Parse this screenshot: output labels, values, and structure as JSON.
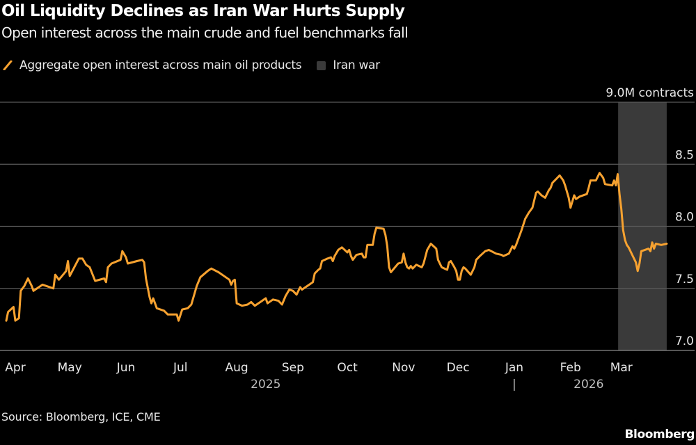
{
  "header": {
    "title": "Oil Liquidity Declines as Iran War Hurts Supply",
    "subtitle": "Open interest across the main crude and fuel benchmarks fall"
  },
  "legend": {
    "series_label": "Aggregate open interest across main oil products",
    "shade_label": "Iran war"
  },
  "footer": {
    "source": "Source: Bloomberg, ICE, CME",
    "logo": "Bloomberg"
  },
  "colors": {
    "line": "#f7a230",
    "shade": "#3a3a3a",
    "grid": "#5a5a5a",
    "background": "#000000"
  },
  "chart_data": {
    "type": "line",
    "ylabel_unit": "9.0M contracts",
    "ylim": [
      7.0,
      9.0
    ],
    "yticks": [
      {
        "value": 7.0,
        "label": "7.0"
      },
      {
        "value": 7.5,
        "label": "7.5"
      },
      {
        "value": 8.0,
        "label": "8.0"
      },
      {
        "value": 8.5,
        "label": "8.5"
      },
      {
        "value": 9.0,
        "label": "9.0M contracts"
      }
    ],
    "grid": true,
    "xlim": [
      "2025-03-26",
      "2026-03-26"
    ],
    "xticks": [
      {
        "date": "2025-04-01",
        "label": "Apr"
      },
      {
        "date": "2025-05-01",
        "label": "May"
      },
      {
        "date": "2025-06-01",
        "label": "Jun"
      },
      {
        "date": "2025-07-01",
        "label": "Jul"
      },
      {
        "date": "2025-08-01",
        "label": "Aug"
      },
      {
        "date": "2025-09-01",
        "label": "Sep"
      },
      {
        "date": "2025-10-01",
        "label": "Oct"
      },
      {
        "date": "2025-11-01",
        "label": "Nov"
      },
      {
        "date": "2025-12-01",
        "label": "Dec"
      },
      {
        "date": "2026-01-01",
        "label": "Jan"
      },
      {
        "date": "2026-02-01",
        "label": "Feb"
      },
      {
        "date": "2026-03-01",
        "label": "Mar"
      }
    ],
    "year_labels": [
      {
        "date": "2025-08-17",
        "label": "2025"
      },
      {
        "date": "2026-02-11",
        "label": "2026"
      }
    ],
    "year_divider": "|",
    "shaded_periods": [
      {
        "name": "Iran war",
        "start": "2026-02-28",
        "end": "2026-03-26"
      }
    ],
    "series": [
      {
        "name": "Aggregate open interest across main oil products",
        "points": [
          [
            "2025-03-27",
            7.24
          ],
          [
            "2025-03-28",
            7.31
          ],
          [
            "2025-03-31",
            7.35
          ],
          [
            "2025-04-01",
            7.24
          ],
          [
            "2025-04-03",
            7.26
          ],
          [
            "2025-04-04",
            7.48
          ],
          [
            "2025-04-06",
            7.52
          ],
          [
            "2025-04-08",
            7.58
          ],
          [
            "2025-04-10",
            7.52
          ],
          [
            "2025-04-11",
            7.48
          ],
          [
            "2025-04-16",
            7.53
          ],
          [
            "2025-04-22",
            7.5
          ],
          [
            "2025-04-23",
            7.61
          ],
          [
            "2025-04-25",
            7.57
          ],
          [
            "2025-04-29",
            7.64
          ],
          [
            "2025-04-30",
            7.72
          ],
          [
            "2025-05-01",
            7.6
          ],
          [
            "2025-05-06",
            7.74
          ],
          [
            "2025-05-08",
            7.74
          ],
          [
            "2025-05-10",
            7.69
          ],
          [
            "2025-05-12",
            7.67
          ],
          [
            "2025-05-15",
            7.56
          ],
          [
            "2025-05-20",
            7.58
          ],
          [
            "2025-05-21",
            7.55
          ],
          [
            "2025-05-22",
            7.67
          ],
          [
            "2025-05-24",
            7.7
          ],
          [
            "2025-05-29",
            7.73
          ],
          [
            "2025-05-30",
            7.8
          ],
          [
            "2025-06-01",
            7.75
          ],
          [
            "2025-06-02",
            7.7
          ],
          [
            "2025-06-07",
            7.72
          ],
          [
            "2025-06-10",
            7.73
          ],
          [
            "2025-06-11",
            7.71
          ],
          [
            "2025-06-12",
            7.58
          ],
          [
            "2025-06-14",
            7.43
          ],
          [
            "2025-06-15",
            7.38
          ],
          [
            "2025-06-16",
            7.42
          ],
          [
            "2025-06-18",
            7.34
          ],
          [
            "2025-06-22",
            7.32
          ],
          [
            "2025-06-24",
            7.29
          ],
          [
            "2025-06-29",
            7.29
          ],
          [
            "2025-06-30",
            7.24
          ],
          [
            "2025-07-02",
            7.33
          ],
          [
            "2025-07-05",
            7.34
          ],
          [
            "2025-07-07",
            7.37
          ],
          [
            "2025-07-10",
            7.52
          ],
          [
            "2025-07-12",
            7.59
          ],
          [
            "2025-07-16",
            7.64
          ],
          [
            "2025-07-18",
            7.66
          ],
          [
            "2025-07-22",
            7.63
          ],
          [
            "2025-07-28",
            7.57
          ],
          [
            "2025-07-29",
            7.53
          ],
          [
            "2025-07-30",
            7.56
          ],
          [
            "2025-07-31",
            7.57
          ],
          [
            "2025-08-01",
            7.38
          ],
          [
            "2025-08-04",
            7.36
          ],
          [
            "2025-08-07",
            7.37
          ],
          [
            "2025-08-09",
            7.39
          ],
          [
            "2025-08-11",
            7.36
          ],
          [
            "2025-08-15",
            7.4
          ],
          [
            "2025-08-17",
            7.42
          ],
          [
            "2025-08-18",
            7.38
          ],
          [
            "2025-08-21",
            7.41
          ],
          [
            "2025-08-24",
            7.4
          ],
          [
            "2025-08-26",
            7.37
          ],
          [
            "2025-08-28",
            7.44
          ],
          [
            "2025-08-30",
            7.49
          ],
          [
            "2025-09-01",
            7.48
          ],
          [
            "2025-09-03",
            7.45
          ],
          [
            "2025-09-05",
            7.51
          ],
          [
            "2025-09-06",
            7.49
          ],
          [
            "2025-09-10",
            7.53
          ],
          [
            "2025-09-12",
            7.55
          ],
          [
            "2025-09-13",
            7.62
          ],
          [
            "2025-09-15",
            7.65
          ],
          [
            "2025-09-16",
            7.66
          ],
          [
            "2025-09-17",
            7.72
          ],
          [
            "2025-09-20",
            7.74
          ],
          [
            "2025-09-22",
            7.75
          ],
          [
            "2025-09-23",
            7.72
          ],
          [
            "2025-09-24",
            7.76
          ],
          [
            "2025-09-26",
            7.81
          ],
          [
            "2025-09-28",
            7.83
          ],
          [
            "2025-10-01",
            7.79
          ],
          [
            "2025-10-02",
            7.81
          ],
          [
            "2025-10-03",
            7.76
          ],
          [
            "2025-10-04",
            7.73
          ],
          [
            "2025-10-06",
            7.77
          ],
          [
            "2025-10-09",
            7.78
          ],
          [
            "2025-10-10",
            7.75
          ],
          [
            "2025-10-11",
            7.75
          ],
          [
            "2025-10-12",
            7.85
          ],
          [
            "2025-10-15",
            7.85
          ],
          [
            "2025-10-16",
            7.94
          ],
          [
            "2025-10-17",
            7.99
          ],
          [
            "2025-10-21",
            7.98
          ],
          [
            "2025-10-22",
            7.93
          ],
          [
            "2025-10-23",
            7.84
          ],
          [
            "2025-10-24",
            7.67
          ],
          [
            "2025-10-25",
            7.63
          ],
          [
            "2025-10-29",
            7.7
          ],
          [
            "2025-10-31",
            7.71
          ],
          [
            "2025-11-01",
            7.78
          ],
          [
            "2025-11-02",
            7.71
          ],
          [
            "2025-11-03",
            7.67
          ],
          [
            "2025-11-04",
            7.66
          ],
          [
            "2025-11-05",
            7.68
          ],
          [
            "2025-11-06",
            7.66
          ],
          [
            "2025-11-08",
            7.69
          ],
          [
            "2025-11-11",
            7.67
          ],
          [
            "2025-11-12",
            7.7
          ],
          [
            "2025-11-14",
            7.81
          ],
          [
            "2025-11-16",
            7.86
          ],
          [
            "2025-11-19",
            7.82
          ],
          [
            "2025-11-20",
            7.73
          ],
          [
            "2025-11-22",
            7.67
          ],
          [
            "2025-11-25",
            7.65
          ],
          [
            "2025-11-26",
            7.71
          ],
          [
            "2025-11-27",
            7.72
          ],
          [
            "2025-11-29",
            7.67
          ],
          [
            "2025-11-30",
            7.64
          ],
          [
            "2025-12-01",
            7.57
          ],
          [
            "2025-12-02",
            7.57
          ],
          [
            "2025-12-03",
            7.64
          ],
          [
            "2025-12-04",
            7.67
          ],
          [
            "2025-12-05",
            7.66
          ],
          [
            "2025-12-08",
            7.61
          ],
          [
            "2025-12-10",
            7.67
          ],
          [
            "2025-12-11",
            7.73
          ],
          [
            "2025-12-13",
            7.76
          ],
          [
            "2025-12-16",
            7.8
          ],
          [
            "2025-12-18",
            7.81
          ],
          [
            "2025-12-22",
            7.78
          ],
          [
            "2025-12-25",
            7.77
          ],
          [
            "2025-12-26",
            7.76
          ],
          [
            "2025-12-29",
            7.78
          ],
          [
            "2025-12-31",
            7.84
          ],
          [
            "2026-01-01",
            7.82
          ],
          [
            "2026-01-02",
            7.85
          ],
          [
            "2026-01-05",
            7.97
          ],
          [
            "2026-01-07",
            8.06
          ],
          [
            "2026-01-09",
            8.11
          ],
          [
            "2026-01-11",
            8.15
          ],
          [
            "2026-01-13",
            8.27
          ],
          [
            "2026-01-14",
            8.28
          ],
          [
            "2026-01-16",
            8.25
          ],
          [
            "2026-01-18",
            8.23
          ],
          [
            "2026-01-20",
            8.29
          ],
          [
            "2026-01-21",
            8.31
          ],
          [
            "2026-01-22",
            8.35
          ],
          [
            "2026-01-24",
            8.38
          ],
          [
            "2026-01-26",
            8.41
          ],
          [
            "2026-01-28",
            8.37
          ],
          [
            "2026-01-29",
            8.33
          ],
          [
            "2026-01-31",
            8.23
          ],
          [
            "2026-02-01",
            8.15
          ],
          [
            "2026-02-03",
            8.25
          ],
          [
            "2026-02-04",
            8.22
          ],
          [
            "2026-02-06",
            8.24
          ],
          [
            "2026-02-10",
            8.26
          ],
          [
            "2026-02-11",
            8.31
          ],
          [
            "2026-02-12",
            8.37
          ],
          [
            "2026-02-15",
            8.37
          ],
          [
            "2026-02-17",
            8.43
          ],
          [
            "2026-02-19",
            8.39
          ],
          [
            "2026-02-20",
            8.34
          ],
          [
            "2026-02-24",
            8.33
          ],
          [
            "2026-02-25",
            8.37
          ],
          [
            "2026-02-26",
            8.33
          ],
          [
            "2026-02-27",
            8.42
          ],
          [
            "2026-02-28",
            8.26
          ],
          [
            "2026-03-01",
            8.14
          ],
          [
            "2026-03-02",
            7.97
          ],
          [
            "2026-03-03",
            7.89
          ],
          [
            "2026-03-04",
            7.85
          ],
          [
            "2026-03-05",
            7.83
          ],
          [
            "2026-03-07",
            7.77
          ],
          [
            "2026-03-09",
            7.71
          ],
          [
            "2026-03-10",
            7.64
          ],
          [
            "2026-03-11",
            7.7
          ],
          [
            "2026-03-12",
            7.8
          ],
          [
            "2026-03-14",
            7.81
          ],
          [
            "2026-03-16",
            7.82
          ],
          [
            "2026-03-17",
            7.8
          ],
          [
            "2026-03-18",
            7.87
          ],
          [
            "2026-03-19",
            7.82
          ],
          [
            "2026-03-20",
            7.86
          ],
          [
            "2026-03-23",
            7.85
          ],
          [
            "2026-03-26",
            7.86
          ]
        ]
      }
    ]
  }
}
